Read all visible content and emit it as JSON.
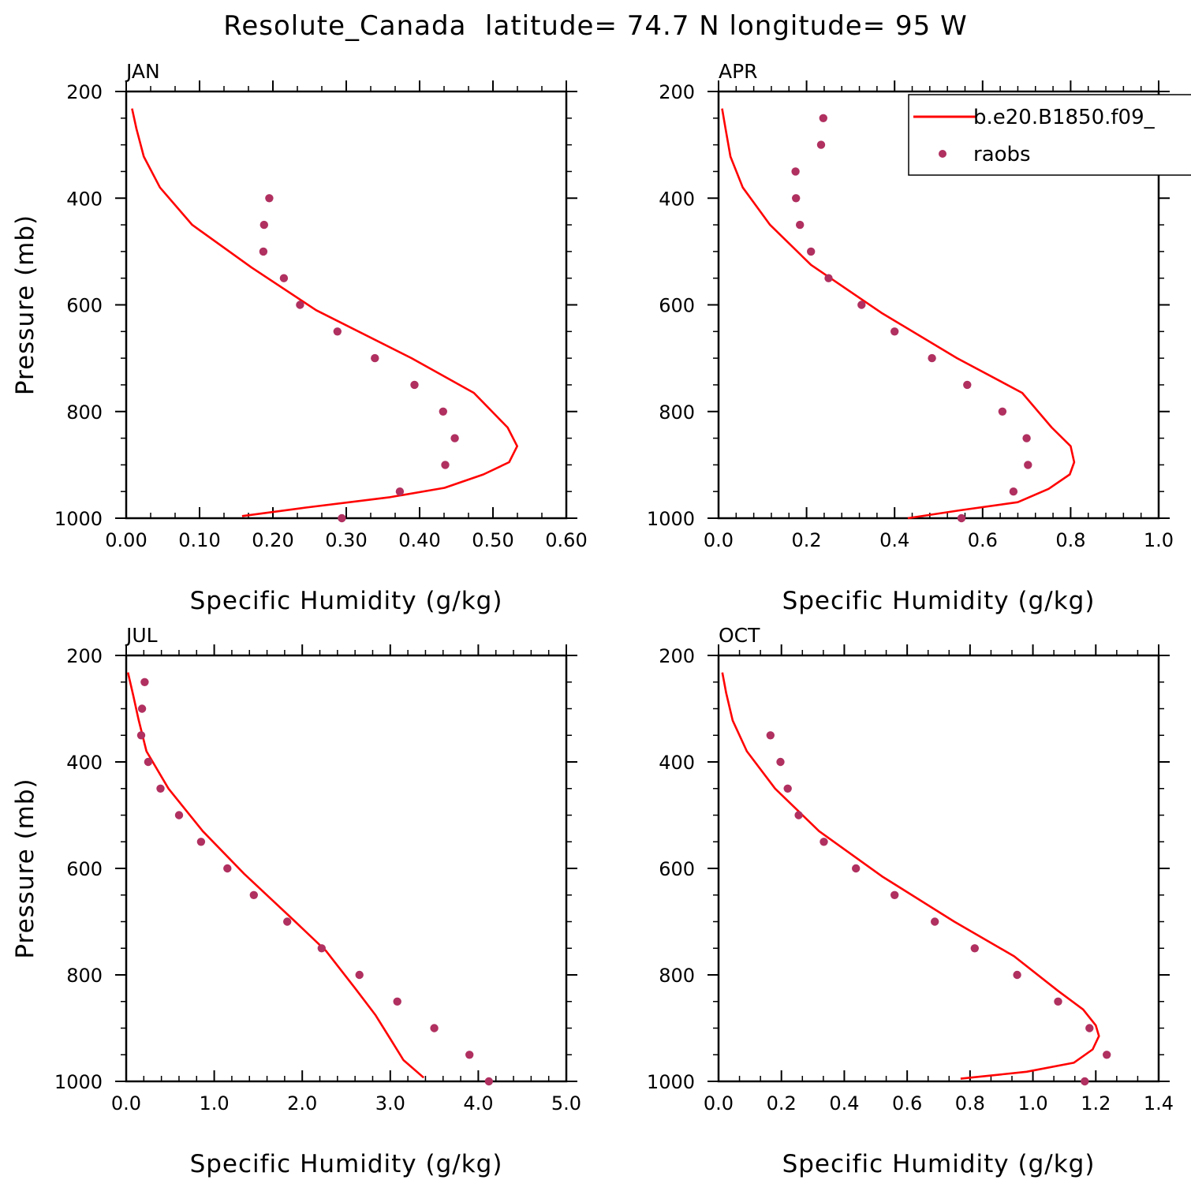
{
  "figure": {
    "title": "Resolute_Canada  latitude= 74.7 N longitude= 95 W",
    "colors": {
      "model": "#ff0000",
      "obs": "#b03060",
      "axes": "#000000"
    }
  },
  "legend": {
    "placement": "top-right",
    "model_label": "b.e20.B1850.f09_",
    "obs_label": "raobs"
  },
  "chart_data": [
    {
      "type": "line",
      "panel_label": "JAN",
      "xlabel": "Specific Humidity (g/kg)",
      "ylabel": "Pressure (mb)",
      "xlim": [
        0,
        0.6
      ],
      "ylim": [
        1000,
        200
      ],
      "xticks": [
        "0.00",
        "0.10",
        "0.20",
        "0.30",
        "0.40",
        "0.50",
        "0.60"
      ],
      "yticks": [
        "200",
        "400",
        "600",
        "800",
        "1000"
      ],
      "series": [
        {
          "name": "b.e20.B1850.f09_",
          "style": "line",
          "points": [
            [
              0.008,
              232
            ],
            [
              0.014,
              270
            ],
            [
              0.024,
              322
            ],
            [
              0.046,
              380
            ],
            [
              0.09,
              450
            ],
            [
              0.171,
              530
            ],
            [
              0.259,
              610
            ],
            [
              0.389,
              700
            ],
            [
              0.474,
              765
            ],
            [
              0.52,
              830
            ],
            [
              0.533,
              865
            ],
            [
              0.522,
              895
            ],
            [
              0.487,
              918
            ],
            [
              0.434,
              943
            ],
            [
              0.358,
              961
            ],
            [
              0.245,
              980
            ],
            [
              0.158,
              996
            ]
          ]
        },
        {
          "name": "raobs",
          "style": "markers",
          "points": [
            [
              0.195,
              400
            ],
            [
              0.188,
              450
            ],
            [
              0.187,
              500
            ],
            [
              0.215,
              550
            ],
            [
              0.237,
              600
            ],
            [
              0.288,
              650
            ],
            [
              0.339,
              700
            ],
            [
              0.393,
              750
            ],
            [
              0.432,
              800
            ],
            [
              0.448,
              850
            ],
            [
              0.435,
              900
            ],
            [
              0.373,
              950
            ],
            [
              0.294,
              1000
            ]
          ]
        }
      ]
    },
    {
      "type": "line",
      "panel_label": "APR",
      "xlabel": "Specific Humidity (g/kg)",
      "ylabel": "",
      "xlim": [
        0,
        1.0
      ],
      "ylim": [
        1000,
        200
      ],
      "xticks": [
        "0.0",
        "0.2",
        "0.4",
        "0.6",
        "0.8",
        "1.0"
      ],
      "yticks": [
        "200",
        "400",
        "600",
        "800",
        "1000"
      ],
      "series": [
        {
          "name": "b.e20.B1850.f09_",
          "style": "line",
          "points": [
            [
              0.008,
              232
            ],
            [
              0.016,
              270
            ],
            [
              0.027,
              322
            ],
            [
              0.055,
              380
            ],
            [
              0.117,
              450
            ],
            [
              0.21,
              525
            ],
            [
              0.37,
              615
            ],
            [
              0.542,
              700
            ],
            [
              0.69,
              765
            ],
            [
              0.757,
              830
            ],
            [
              0.8,
              865
            ],
            [
              0.808,
              895
            ],
            [
              0.798,
              918
            ],
            [
              0.75,
              945
            ],
            [
              0.68,
              970
            ],
            [
              0.55,
              985
            ],
            [
              0.43,
              1000
            ]
          ]
        },
        {
          "name": "raobs",
          "style": "markers",
          "points": [
            [
              0.238,
              250
            ],
            [
              0.233,
              300
            ],
            [
              0.175,
              350
            ],
            [
              0.176,
              400
            ],
            [
              0.185,
              450
            ],
            [
              0.21,
              500
            ],
            [
              0.25,
              550
            ],
            [
              0.325,
              600
            ],
            [
              0.4,
              650
            ],
            [
              0.485,
              700
            ],
            [
              0.565,
              750
            ],
            [
              0.645,
              800
            ],
            [
              0.7,
              850
            ],
            [
              0.703,
              900
            ],
            [
              0.67,
              950
            ],
            [
              0.552,
              1000
            ]
          ]
        }
      ]
    },
    {
      "type": "line",
      "panel_label": "JUL",
      "xlabel": "Specific Humidity (g/kg)",
      "ylabel": "Pressure (mb)",
      "xlim": [
        0,
        5.0
      ],
      "ylim": [
        1000,
        200
      ],
      "xticks": [
        "0.0",
        "1.0",
        "2.0",
        "3.0",
        "4.0",
        "5.0"
      ],
      "yticks": [
        "200",
        "400",
        "600",
        "800",
        "1000"
      ],
      "series": [
        {
          "name": "b.e20.B1850.f09_",
          "style": "line",
          "points": [
            [
              0.02,
              232
            ],
            [
              0.08,
              275
            ],
            [
              0.14,
              320
            ],
            [
              0.23,
              380
            ],
            [
              0.48,
              450
            ],
            [
              0.87,
              530
            ],
            [
              1.34,
              610
            ],
            [
              1.92,
              700
            ],
            [
              2.27,
              755
            ],
            [
              2.6,
              825
            ],
            [
              2.83,
              875
            ],
            [
              3.0,
              920
            ],
            [
              3.15,
              960
            ],
            [
              3.38,
              993
            ]
          ]
        },
        {
          "name": "raobs",
          "style": "markers",
          "points": [
            [
              0.21,
              250
            ],
            [
              0.18,
              300
            ],
            [
              0.17,
              350
            ],
            [
              0.25,
              400
            ],
            [
              0.39,
              450
            ],
            [
              0.6,
              500
            ],
            [
              0.85,
              550
            ],
            [
              1.15,
              600
            ],
            [
              1.45,
              650
            ],
            [
              1.83,
              700
            ],
            [
              2.22,
              750
            ],
            [
              2.65,
              800
            ],
            [
              3.08,
              850
            ],
            [
              3.5,
              900
            ],
            [
              3.9,
              950
            ],
            [
              4.12,
              1000
            ]
          ]
        }
      ]
    },
    {
      "type": "line",
      "panel_label": "OCT",
      "xlabel": "Specific Humidity (g/kg)",
      "ylabel": "",
      "xlim": [
        0,
        1.4
      ],
      "ylim": [
        1000,
        200
      ],
      "xticks": [
        "0.0",
        "0.2",
        "0.4",
        "0.6",
        "0.8",
        "1.0",
        "1.2",
        "1.4"
      ],
      "yticks": [
        "200",
        "400",
        "600",
        "800",
        "1000"
      ],
      "series": [
        {
          "name": "b.e20.B1850.f09_",
          "style": "line",
          "points": [
            [
              0.012,
              232
            ],
            [
              0.024,
              270
            ],
            [
              0.045,
              322
            ],
            [
              0.09,
              380
            ],
            [
              0.18,
              450
            ],
            [
              0.32,
              530
            ],
            [
              0.52,
              615
            ],
            [
              0.75,
              700
            ],
            [
              0.94,
              765
            ],
            [
              1.08,
              830
            ],
            [
              1.16,
              865
            ],
            [
              1.2,
              895
            ],
            [
              1.21,
              915
            ],
            [
              1.19,
              940
            ],
            [
              1.13,
              965
            ],
            [
              0.98,
              982
            ],
            [
              0.77,
              995
            ]
          ]
        },
        {
          "name": "raobs",
          "style": "markers",
          "points": [
            [
              0.165,
              350
            ],
            [
              0.197,
              400
            ],
            [
              0.22,
              450
            ],
            [
              0.255,
              500
            ],
            [
              0.335,
              550
            ],
            [
              0.437,
              600
            ],
            [
              0.56,
              650
            ],
            [
              0.688,
              700
            ],
            [
              0.815,
              750
            ],
            [
              0.95,
              800
            ],
            [
              1.08,
              850
            ],
            [
              1.18,
              900
            ],
            [
              1.235,
              950
            ],
            [
              1.165,
              1000
            ]
          ]
        }
      ]
    }
  ]
}
